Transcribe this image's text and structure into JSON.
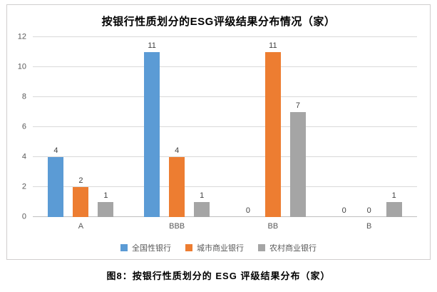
{
  "caption": "图8：按银行性质划分的 ESG 评级结果分布（家）",
  "chart_data": {
    "type": "bar",
    "title": "按银行性质划分的ESG评级结果分布情况（家）",
    "categories": [
      "A",
      "BBB",
      "BB",
      "B"
    ],
    "series": [
      {
        "name": "全国性银行",
        "color": "#5b9bd5",
        "values": [
          4,
          11,
          0,
          0
        ]
      },
      {
        "name": "城市商业银行",
        "color": "#ed7d31",
        "values": [
          2,
          4,
          11,
          0
        ]
      },
      {
        "name": "农村商业银行",
        "color": "#a5a5a5",
        "values": [
          1,
          1,
          7,
          1
        ]
      }
    ],
    "xlabel": "",
    "ylabel": "",
    "ylim": [
      0,
      12
    ],
    "yticks": [
      0,
      2,
      4,
      6,
      8,
      10,
      12
    ],
    "grid": true,
    "data_labels": true,
    "legend_position": "bottom"
  }
}
